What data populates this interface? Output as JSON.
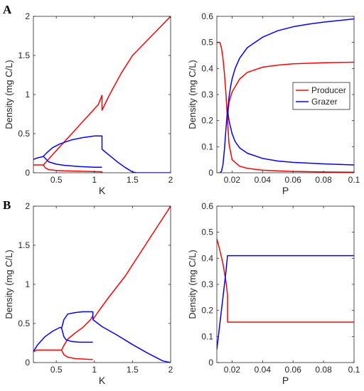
{
  "panel_labels": [
    "A",
    "B"
  ],
  "colors": {
    "producer": "#ff0000",
    "grazer": "#0000ff",
    "axis": "#262626"
  },
  "chart_data": [
    {
      "id": "A-left",
      "panel": "A",
      "type": "line",
      "xlabel": "K",
      "ylabel": "Density (mg C/L)",
      "xlim": [
        0.2,
        2
      ],
      "ylim": [
        0,
        2
      ],
      "xticks": [
        0.5,
        1,
        1.5,
        2
      ],
      "xtick_labels": [
        "0.5",
        "1",
        "1.5",
        "2"
      ],
      "yticks": [
        0,
        0.5,
        1,
        1.5,
        2
      ],
      "ytick_labels": [
        "0",
        "0.5",
        "1",
        "1.5",
        "2"
      ],
      "grid": false,
      "series": [
        {
          "color": "#ff0000",
          "x": [
            0.2,
            0.32,
            0.33,
            0.45,
            0.6,
            0.75,
            0.9,
            1.05,
            1.1,
            1.1,
            1.2,
            1.35,
            1.5,
            1.7,
            1.85,
            2.0
          ],
          "y": [
            0.1,
            0.1,
            0.1,
            0.23,
            0.39,
            0.55,
            0.71,
            0.87,
            0.99,
            0.8,
            1.0,
            1.27,
            1.5,
            1.7,
            1.85,
            2.0
          ]
        },
        {
          "color": "#ff0000",
          "x": [
            0.33,
            0.36,
            0.4,
            0.5,
            0.6,
            0.8,
            1.0,
            1.1,
            1.1
          ],
          "y": [
            0.1,
            0.06,
            0.04,
            0.03,
            0.025,
            0.02,
            0.015,
            0.012,
            0.0
          ]
        },
        {
          "color": "#0000ff",
          "x": [
            0.2,
            0.25,
            0.3,
            0.33,
            0.38,
            0.45,
            0.55,
            0.7,
            0.85,
            1.0,
            1.1,
            1.1
          ],
          "y": [
            0.17,
            0.19,
            0.2,
            0.21,
            0.26,
            0.32,
            0.37,
            0.42,
            0.45,
            0.47,
            0.47,
            0.3
          ]
        },
        {
          "color": "#0000ff",
          "x": [
            0.33,
            0.4,
            0.5,
            0.6,
            0.8,
            1.0,
            1.1
          ],
          "y": [
            0.21,
            0.14,
            0.11,
            0.095,
            0.08,
            0.07,
            0.07
          ]
        },
        {
          "color": "#0000ff",
          "x": [
            1.1,
            1.2,
            1.3,
            1.4,
            1.5,
            1.55,
            1.7,
            2.0
          ],
          "y": [
            0.3,
            0.22,
            0.14,
            0.07,
            0.01,
            0.0,
            0.0,
            0.0
          ]
        }
      ]
    },
    {
      "id": "A-right",
      "panel": "A",
      "type": "line",
      "xlabel": "P",
      "ylabel": "Density (mg C/L)",
      "xlim": [
        0.01,
        0.1
      ],
      "ylim": [
        0,
        0.6
      ],
      "xticks": [
        0.02,
        0.04,
        0.06,
        0.08,
        0.1
      ],
      "xtick_labels": [
        "0.02",
        "0.04",
        "0.06",
        "0.08",
        "0.1"
      ],
      "yticks": [
        0,
        0.1,
        0.2,
        0.3,
        0.4,
        0.5,
        0.6
      ],
      "ytick_labels": [
        "0",
        "0.1",
        "0.2",
        "0.3",
        "0.4",
        "0.5",
        "0.6"
      ],
      "grid": false,
      "legend": {
        "placement": "center-right",
        "entries": [
          {
            "label": "Producer",
            "color": "#ff0000"
          },
          {
            "label": "Grazer",
            "color": "#0000ff"
          }
        ]
      },
      "series": [
        {
          "name": "Producer",
          "color": "#ff0000",
          "x": [
            0.01,
            0.012,
            0.013,
            0.014,
            0.015,
            0.016,
            0.017
          ],
          "y": [
            0.5,
            0.5,
            0.48,
            0.44,
            0.38,
            0.3,
            0.2
          ]
        },
        {
          "name": "Producer",
          "color": "#ff0000",
          "x": [
            0.017,
            0.0175,
            0.018,
            0.02,
            0.025,
            0.03,
            0.04,
            0.05,
            0.06,
            0.08,
            0.1
          ],
          "y": [
            0.2,
            0.24,
            0.27,
            0.31,
            0.36,
            0.385,
            0.405,
            0.413,
            0.418,
            0.422,
            0.424
          ]
        },
        {
          "name": "Producer",
          "color": "#ff0000",
          "x": [
            0.017,
            0.018,
            0.02,
            0.025,
            0.03,
            0.04,
            0.05,
            0.06,
            0.08,
            0.1
          ],
          "y": [
            0.2,
            0.11,
            0.05,
            0.025,
            0.017,
            0.01,
            0.007,
            0.005,
            0.003,
            0.002
          ]
        },
        {
          "name": "Grazer",
          "color": "#0000ff",
          "x": [
            0.012,
            0.013,
            0.014,
            0.015,
            0.016,
            0.017
          ],
          "y": [
            0.0,
            0.005,
            0.03,
            0.09,
            0.17,
            0.24
          ]
        },
        {
          "name": "Grazer",
          "color": "#0000ff",
          "x": [
            0.017,
            0.0175,
            0.018,
            0.019,
            0.02,
            0.022,
            0.025,
            0.03,
            0.04,
            0.05,
            0.06,
            0.07,
            0.08,
            0.09,
            0.1
          ],
          "y": [
            0.24,
            0.26,
            0.29,
            0.33,
            0.36,
            0.4,
            0.44,
            0.48,
            0.52,
            0.545,
            0.56,
            0.57,
            0.578,
            0.584,
            0.59
          ]
        },
        {
          "name": "Grazer",
          "color": "#0000ff",
          "x": [
            0.017,
            0.018,
            0.02,
            0.022,
            0.025,
            0.03,
            0.04,
            0.05,
            0.06,
            0.08,
            0.1
          ],
          "y": [
            0.24,
            0.2,
            0.15,
            0.12,
            0.095,
            0.075,
            0.055,
            0.045,
            0.04,
            0.034,
            0.03
          ]
        }
      ]
    },
    {
      "id": "B-left",
      "panel": "B",
      "type": "line",
      "xlabel": "K",
      "ylabel": "Density (mg C/L)",
      "xlim": [
        0.2,
        2
      ],
      "ylim": [
        0,
        2
      ],
      "xticks": [
        0.5,
        1,
        1.5,
        2
      ],
      "xtick_labels": [
        "0.5",
        "1",
        "1.5",
        "2"
      ],
      "yticks": [
        0,
        0.5,
        1,
        1.5,
        2
      ],
      "ytick_labels": [
        "0",
        "0.5",
        "1",
        "1.5",
        "2"
      ],
      "grid": false,
      "series": [
        {
          "color": "#ff0000",
          "x": [
            0.2,
            0.25,
            0.57,
            0.6,
            0.65,
            0.75,
            0.85,
            0.95,
            0.98
          ],
          "y": [
            0.14,
            0.16,
            0.16,
            0.22,
            0.3,
            0.38,
            0.45,
            0.55,
            0.6
          ]
        },
        {
          "color": "#ff0000",
          "x": [
            0.57,
            0.6,
            0.65,
            0.75,
            0.85,
            0.95,
            0.98
          ],
          "y": [
            0.16,
            0.1,
            0.07,
            0.05,
            0.045,
            0.04,
            0.04
          ]
        },
        {
          "color": "#ff0000",
          "x": [
            0.98,
            1.05,
            1.2,
            1.4,
            1.6,
            1.8,
            1.9,
            2.0
          ],
          "y": [
            0.55,
            0.65,
            0.85,
            1.1,
            1.4,
            1.7,
            1.85,
            2.0
          ]
        },
        {
          "color": "#0000ff",
          "x": [
            0.2,
            0.25,
            0.35,
            0.45,
            0.55,
            0.57,
            0.6,
            0.65,
            0.75,
            0.85,
            0.95,
            0.98,
            0.98
          ],
          "y": [
            0.14,
            0.22,
            0.33,
            0.4,
            0.45,
            0.44,
            0.55,
            0.62,
            0.64,
            0.65,
            0.65,
            0.65,
            0.55
          ]
        },
        {
          "color": "#0000ff",
          "x": [
            0.57,
            0.6,
            0.63,
            0.7,
            0.8,
            0.9,
            0.98
          ],
          "y": [
            0.44,
            0.33,
            0.29,
            0.27,
            0.26,
            0.26,
            0.26
          ]
        },
        {
          "color": "#0000ff",
          "x": [
            0.98,
            1.1,
            1.3,
            1.5,
            1.7,
            1.9,
            2.0
          ],
          "y": [
            0.55,
            0.46,
            0.35,
            0.23,
            0.12,
            0.02,
            0.0
          ]
        }
      ]
    },
    {
      "id": "B-right",
      "panel": "B",
      "type": "line",
      "xlabel": "P",
      "ylabel": "Density (mg C/L)",
      "xlim": [
        0.01,
        0.1
      ],
      "ylim": [
        0,
        0.6
      ],
      "xticks": [
        0.02,
        0.04,
        0.06,
        0.08,
        0.1
      ],
      "xtick_labels": [
        "0.02",
        "0.04",
        "0.06",
        "0.08",
        "0.1"
      ],
      "yticks": [
        0,
        0.1,
        0.2,
        0.3,
        0.4,
        0.5,
        0.6
      ],
      "ytick_labels": [
        "0",
        "0.1",
        "0.2",
        "0.3",
        "0.4",
        "0.5",
        "0.6"
      ],
      "grid": false,
      "series": [
        {
          "name": "Producer",
          "color": "#ff0000",
          "x": [
            0.01,
            0.012,
            0.014,
            0.016,
            0.017,
            0.017,
            0.03,
            0.05,
            0.07,
            0.1
          ],
          "y": [
            0.475,
            0.43,
            0.38,
            0.31,
            0.26,
            0.155,
            0.155,
            0.155,
            0.155,
            0.155
          ]
        },
        {
          "name": "Grazer",
          "color": "#0000ff",
          "x": [
            0.01,
            0.012,
            0.014,
            0.016,
            0.017,
            0.03,
            0.05,
            0.07,
            0.1
          ],
          "y": [
            0.05,
            0.15,
            0.25,
            0.35,
            0.41,
            0.41,
            0.41,
            0.41,
            0.41
          ]
        }
      ]
    }
  ]
}
